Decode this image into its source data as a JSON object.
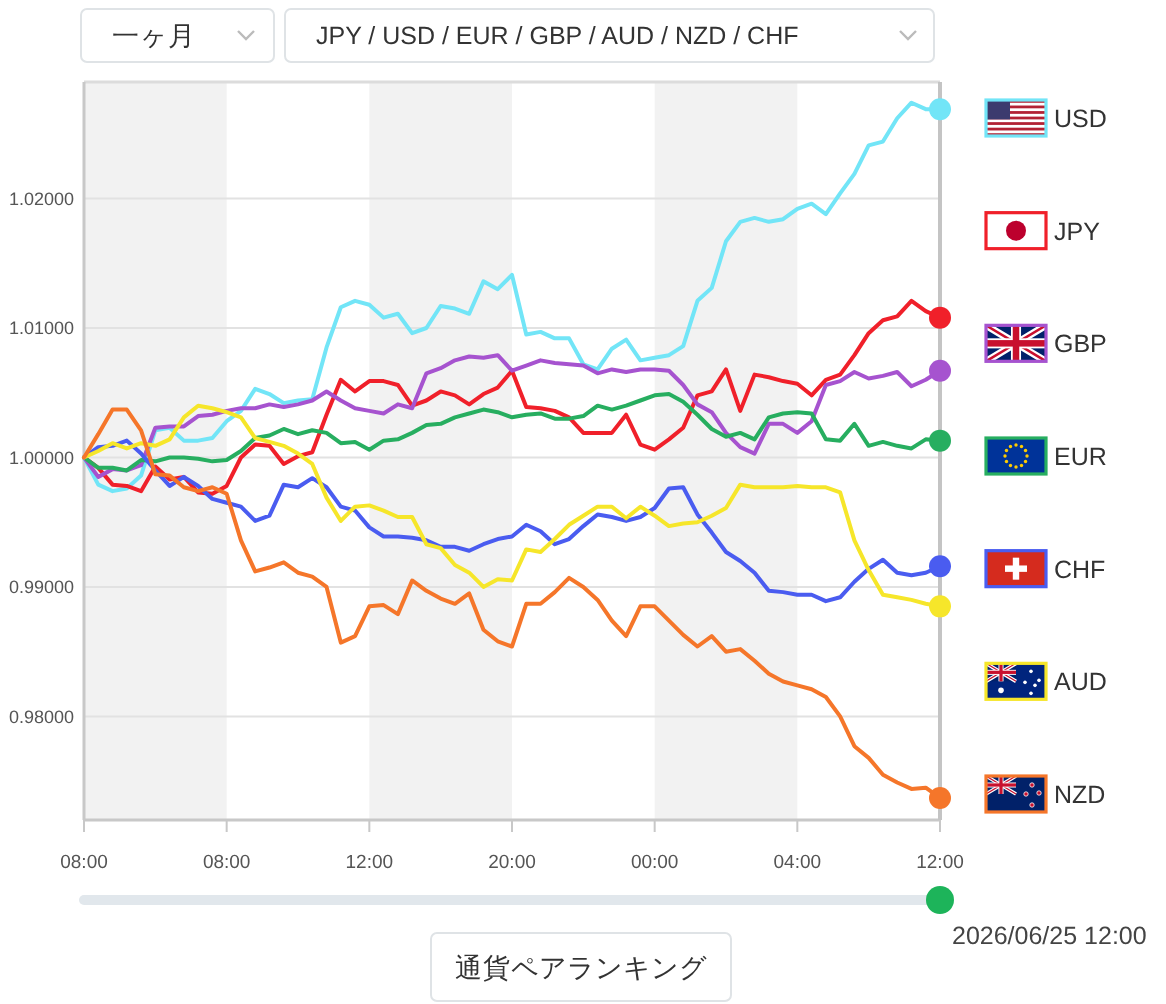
{
  "chart_data": {
    "type": "line",
    "annotations": [
      "一ヶ月",
      "JPY / USD / EUR / GBP / AUD / NZD / CHF",
      "2026/06/25 12:00",
      "通貨ペアランキング"
    ],
    "categories": [
      "08:00",
      null,
      null,
      null,
      null,
      null,
      null,
      null,
      null,
      null,
      "08:00",
      null,
      null,
      null,
      null,
      null,
      null,
      null,
      null,
      null,
      "12:00",
      null,
      null,
      null,
      null,
      null,
      null,
      null,
      null,
      null,
      "20:00",
      null,
      null,
      null,
      null,
      null,
      null,
      null,
      null,
      null,
      "00:00",
      null,
      null,
      null,
      null,
      null,
      null,
      null,
      null,
      null,
      "04:00",
      null,
      null,
      null,
      null,
      null,
      null,
      null,
      null,
      null,
      "12:00"
    ],
    "series": [
      {
        "name": "USD",
        "color": "#72e5f7",
        "values": [
          1.0,
          0.9979,
          0.9974,
          0.9976,
          0.9986,
          1.0021,
          1.0023,
          1.0013,
          1.0013,
          1.0015,
          1.0028,
          1.0036,
          1.0053,
          1.0049,
          1.0042,
          1.0044,
          1.0045,
          1.0085,
          1.0116,
          1.0121,
          1.0118,
          1.0108,
          1.0111,
          1.0096,
          1.01,
          1.0117,
          1.0115,
          1.0111,
          1.0136,
          1.013,
          1.0141,
          1.0095,
          1.0097,
          1.0092,
          1.0092,
          1.0072,
          1.0068,
          1.0084,
          1.0091,
          1.0075,
          1.0077,
          1.0079,
          1.0086,
          1.0121,
          1.0131,
          1.0167,
          1.0182,
          1.0185,
          1.0182,
          1.0184,
          1.0192,
          1.0196,
          1.0188,
          1.0204,
          1.0219,
          1.0241,
          1.0244,
          1.0262,
          1.0274,
          1.0269,
          1.0269
        ]
      },
      {
        "name": "JPY",
        "color": "#f0202a",
        "values": [
          1.0,
          0.9992,
          0.9979,
          0.9978,
          0.9974,
          0.9993,
          0.9983,
          0.9985,
          0.9973,
          0.9972,
          0.9978,
          1.0,
          1.001,
          1.0009,
          0.9995,
          1.0001,
          1.0004,
          1.0033,
          1.006,
          1.0051,
          1.0059,
          1.0059,
          1.0056,
          1.004,
          1.0044,
          1.0051,
          1.0048,
          1.0041,
          1.0049,
          1.0054,
          1.0067,
          1.0039,
          1.0038,
          1.0036,
          1.0031,
          1.0019,
          1.0019,
          1.0019,
          1.0033,
          1.001,
          1.0006,
          1.0014,
          1.0023,
          1.0048,
          1.0051,
          1.0068,
          1.0036,
          1.0064,
          1.0062,
          1.0059,
          1.0057,
          1.0048,
          1.006,
          1.0064,
          1.0079,
          1.0096,
          1.0106,
          1.0109,
          1.0121,
          1.0113,
          1.0108
        ]
      },
      {
        "name": "GBP",
        "color": "#a653cf",
        "values": [
          1.0,
          0.9985,
          0.9991,
          0.999,
          0.9994,
          1.0023,
          1.0024,
          1.0024,
          1.0032,
          1.0033,
          1.0036,
          1.0038,
          1.0038,
          1.0041,
          1.0039,
          1.0041,
          1.0044,
          1.0051,
          1.0044,
          1.0038,
          1.0036,
          1.0034,
          1.0041,
          1.0038,
          1.0065,
          1.0069,
          1.0075,
          1.0078,
          1.0077,
          1.0079,
          1.0067,
          1.0071,
          1.0075,
          1.0073,
          1.0072,
          1.0071,
          1.0065,
          1.0068,
          1.0066,
          1.0068,
          1.0068,
          1.0067,
          1.0056,
          1.0041,
          1.0035,
          1.0019,
          1.0008,
          1.0003,
          1.0026,
          1.0026,
          1.0019,
          1.0028,
          1.0056,
          1.0059,
          1.0066,
          1.0061,
          1.0063,
          1.0066,
          1.0055,
          1.006,
          1.0067
        ]
      },
      {
        "name": "EUR",
        "color": "#27ae60",
        "values": [
          1.0,
          0.9992,
          0.9992,
          0.999,
          0.9998,
          0.9997,
          1.0,
          1.0,
          0.9999,
          0.9997,
          0.9998,
          1.0005,
          1.0015,
          1.0017,
          1.0022,
          1.0018,
          1.0021,
          1.0019,
          1.0011,
          1.0012,
          1.0006,
          1.0013,
          1.0014,
          1.0019,
          1.0025,
          1.0026,
          1.0031,
          1.0034,
          1.0037,
          1.0035,
          1.0031,
          1.0033,
          1.0034,
          1.003,
          1.003,
          1.0032,
          1.004,
          1.0037,
          1.004,
          1.0044,
          1.0048,
          1.0049,
          1.0043,
          1.0033,
          1.0022,
          1.0016,
          1.0019,
          1.0014,
          1.0031,
          1.0034,
          1.0035,
          1.0034,
          1.0014,
          1.0013,
          1.0026,
          1.0009,
          1.0012,
          1.0009,
          1.0007,
          1.0014,
          1.0013
        ]
      },
      {
        "name": "CHF",
        "color": "#4a5cf0",
        "values": [
          1.0,
          1.0008,
          1.0009,
          1.0013,
          1.0003,
          0.999,
          0.9978,
          0.9985,
          0.9978,
          0.9968,
          0.9965,
          0.9962,
          0.9951,
          0.9955,
          0.9979,
          0.9977,
          0.9984,
          0.9977,
          0.9962,
          0.9959,
          0.9946,
          0.9939,
          0.9939,
          0.9938,
          0.9936,
          0.9931,
          0.9931,
          0.9928,
          0.9933,
          0.9937,
          0.9939,
          0.9948,
          0.9943,
          0.9933,
          0.9937,
          0.9947,
          0.9956,
          0.9954,
          0.9951,
          0.9954,
          0.9961,
          0.9976,
          0.9977,
          0.9956,
          0.9942,
          0.9927,
          0.992,
          0.9911,
          0.9897,
          0.9896,
          0.9894,
          0.9894,
          0.9889,
          0.9892,
          0.9904,
          0.9914,
          0.9921,
          0.9911,
          0.9909,
          0.9911,
          0.9916
        ]
      },
      {
        "name": "AUD",
        "color": "#f6e62a",
        "values": [
          1.0,
          1.0005,
          1.0011,
          1.0007,
          1.0011,
          1.0009,
          1.0014,
          1.0031,
          1.004,
          1.0038,
          1.0035,
          1.0031,
          1.0015,
          1.0012,
          1.0009,
          1.0003,
          0.9995,
          0.9969,
          0.9951,
          0.9962,
          0.9963,
          0.9959,
          0.9954,
          0.9954,
          0.9933,
          0.993,
          0.9917,
          0.9911,
          0.99,
          0.9906,
          0.9905,
          0.9929,
          0.9927,
          0.9937,
          0.9948,
          0.9955,
          0.9962,
          0.9962,
          0.9953,
          0.9962,
          0.9955,
          0.9947,
          0.9949,
          0.995,
          0.9955,
          0.9961,
          0.9979,
          0.9977,
          0.9977,
          0.9977,
          0.9978,
          0.9977,
          0.9977,
          0.9973,
          0.9936,
          0.9913,
          0.9894,
          0.9892,
          0.989,
          0.9887,
          0.9885
        ]
      },
      {
        "name": "NZD",
        "color": "#f5762a",
        "values": [
          1.0,
          1.0018,
          1.0037,
          1.0037,
          1.0021,
          0.9987,
          0.9986,
          0.9977,
          0.9974,
          0.9977,
          0.9972,
          0.9936,
          0.9912,
          0.9915,
          0.9919,
          0.9911,
          0.9908,
          0.99,
          0.9857,
          0.9862,
          0.9885,
          0.9886,
          0.9879,
          0.9905,
          0.9897,
          0.9891,
          0.9887,
          0.9895,
          0.9867,
          0.9858,
          0.9854,
          0.9887,
          0.9887,
          0.9896,
          0.9907,
          0.99,
          0.989,
          0.9874,
          0.9862,
          0.9885,
          0.9885,
          0.9874,
          0.9863,
          0.9854,
          0.9862,
          0.985,
          0.9852,
          0.9843,
          0.9833,
          0.9827,
          0.9824,
          0.9821,
          0.9815,
          0.98,
          0.9777,
          0.9768,
          0.9755,
          0.9749,
          0.9744,
          0.9745,
          0.9737
        ]
      },
      {
        "type": "scatter",
        "color": "#72e5f7",
        "values": [
          null,
          null,
          null,
          null,
          null,
          null,
          null,
          null,
          null,
          null,
          null,
          null,
          null,
          null,
          null,
          null,
          null,
          null,
          null,
          null,
          null,
          null,
          null,
          null,
          null,
          null,
          null,
          null,
          null,
          null,
          null,
          null,
          null,
          null,
          null,
          null,
          null,
          null,
          null,
          null,
          null,
          null,
          null,
          null,
          null,
          null,
          null,
          null,
          null,
          null,
          null,
          null,
          null,
          null,
          null,
          null,
          null,
          null,
          null,
          null,
          1.0269
        ]
      },
      {
        "type": "scatter",
        "color": "#f0202a",
        "values": [
          null,
          null,
          null,
          null,
          null,
          null,
          null,
          null,
          null,
          null,
          null,
          null,
          null,
          null,
          null,
          null,
          null,
          null,
          null,
          null,
          null,
          null,
          null,
          null,
          null,
          null,
          null,
          null,
          null,
          null,
          null,
          null,
          null,
          null,
          null,
          null,
          null,
          null,
          null,
          null,
          null,
          null,
          null,
          null,
          null,
          null,
          null,
          null,
          null,
          null,
          null,
          null,
          null,
          null,
          null,
          null,
          null,
          null,
          null,
          null,
          1.0108
        ]
      },
      {
        "type": "scatter",
        "color": "#a653cf",
        "values": [
          null,
          null,
          null,
          null,
          null,
          null,
          null,
          null,
          null,
          null,
          null,
          null,
          null,
          null,
          null,
          null,
          null,
          null,
          null,
          null,
          null,
          null,
          null,
          null,
          null,
          null,
          null,
          null,
          null,
          null,
          null,
          null,
          null,
          null,
          null,
          null,
          null,
          null,
          null,
          null,
          null,
          null,
          null,
          null,
          null,
          null,
          null,
          null,
          null,
          null,
          null,
          null,
          null,
          null,
          null,
          null,
          null,
          null,
          null,
          null,
          1.0067
        ]
      },
      {
        "type": "scatter",
        "color": "#27ae60",
        "values": [
          null,
          null,
          null,
          null,
          null,
          null,
          null,
          null,
          null,
          null,
          null,
          null,
          null,
          null,
          null,
          null,
          null,
          null,
          null,
          null,
          null,
          null,
          null,
          null,
          null,
          null,
          null,
          null,
          null,
          null,
          null,
          null,
          null,
          null,
          null,
          null,
          null,
          null,
          null,
          null,
          null,
          null,
          null,
          null,
          null,
          null,
          null,
          null,
          null,
          null,
          null,
          null,
          null,
          null,
          null,
          null,
          null,
          null,
          null,
          null,
          1.0013
        ]
      },
      {
        "type": "scatter",
        "color": "#4a5cf0",
        "values": [
          null,
          null,
          null,
          null,
          null,
          null,
          null,
          null,
          null,
          null,
          null,
          null,
          null,
          null,
          null,
          null,
          null,
          null,
          null,
          null,
          null,
          null,
          null,
          null,
          null,
          null,
          null,
          null,
          null,
          null,
          null,
          null,
          null,
          null,
          null,
          null,
          null,
          null,
          null,
          null,
          null,
          null,
          null,
          null,
          null,
          null,
          null,
          null,
          null,
          null,
          null,
          null,
          null,
          null,
          null,
          null,
          null,
          null,
          null,
          null,
          0.9916
        ]
      },
      {
        "type": "scatter",
        "color": "#f6e62a",
        "values": [
          null,
          null,
          null,
          null,
          null,
          null,
          null,
          null,
          null,
          null,
          null,
          null,
          null,
          null,
          null,
          null,
          null,
          null,
          null,
          null,
          null,
          null,
          null,
          null,
          null,
          null,
          null,
          null,
          null,
          null,
          null,
          null,
          null,
          null,
          null,
          null,
          null,
          null,
          null,
          null,
          null,
          null,
          null,
          null,
          null,
          null,
          null,
          null,
          null,
          null,
          null,
          null,
          null,
          null,
          null,
          null,
          null,
          null,
          null,
          null,
          0.9885
        ]
      },
      {
        "type": "scatter",
        "color": "#f5762a",
        "values": [
          null,
          null,
          null,
          null,
          null,
          null,
          null,
          null,
          null,
          null,
          null,
          null,
          null,
          null,
          null,
          null,
          null,
          null,
          null,
          null,
          null,
          null,
          null,
          null,
          null,
          null,
          null,
          null,
          null,
          null,
          null,
          null,
          null,
          null,
          null,
          null,
          null,
          null,
          null,
          null,
          null,
          null,
          null,
          null,
          null,
          null,
          null,
          null,
          null,
          null,
          null,
          null,
          null,
          null,
          null,
          null,
          null,
          null,
          null,
          null,
          0.9737
        ]
      }
    ],
    "ylim": [
      0.972,
      1.029
    ],
    "yticks": [
      {
        "value": 0.98,
        "label": "0.98000"
      },
      {
        "value": 0.99,
        "label": "0.99000"
      },
      {
        "value": 1,
        "label": "1.00000"
      },
      {
        "value": 1.01,
        "label": "1.01000"
      },
      {
        "value": 1.02,
        "label": "1.02000"
      }
    ],
    "bands": [
      {
        "axis": "x",
        "from": "12:00",
        "to": "20:00",
        "color": "#f2f2f2"
      },
      {
        "axis": "x",
        "from": "00:00",
        "to": "04:00",
        "color": "#f2f2f2"
      }
    ],
    "grid": "y",
    "legend": "right"
  }
}
